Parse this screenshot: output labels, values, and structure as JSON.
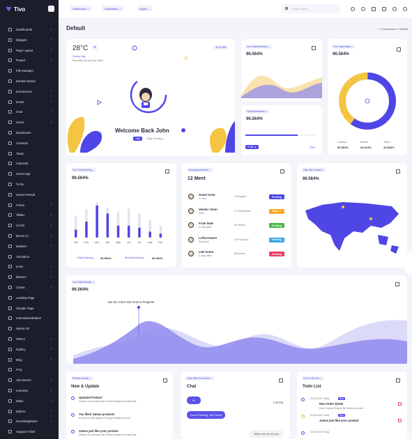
{
  "brand": "Tivo",
  "topbar": {
    "pills": [
      "Dashboard",
      "Application",
      "pages"
    ],
    "search_placeholder": "Search Here ..."
  },
  "sidebar": {
    "items": [
      {
        "label": "Dashboards",
        "chev": true
      },
      {
        "label": "Widgets",
        "chev": true
      },
      {
        "label": "Page Layout",
        "chev": true
      },
      {
        "label": "Project",
        "chev": true
      },
      {
        "label": "File Manager",
        "chev": false
      },
      {
        "label": "Kanban Board",
        "chev": false
      },
      {
        "label": "Ecommerce",
        "chev": true
      },
      {
        "label": "Email",
        "chev": true
      },
      {
        "label": "Chat",
        "chev": true
      },
      {
        "label": "Users",
        "chev": true
      },
      {
        "label": "Bookmarks",
        "chev": false
      },
      {
        "label": "Contacts",
        "chev": false
      },
      {
        "label": "Tasks",
        "chev": false
      },
      {
        "label": "Calendar",
        "chev": false
      },
      {
        "label": "Social App",
        "chev": false
      },
      {
        "label": "To-Do",
        "chev": false
      },
      {
        "label": "Search Result",
        "chev": false
      },
      {
        "label": "Forms",
        "chev": true
      },
      {
        "label": "Tables",
        "chev": true
      },
      {
        "label": "Ui Kits",
        "chev": true
      },
      {
        "label": "Bonus Ui",
        "chev": true
      },
      {
        "label": "Builders",
        "chev": true
      },
      {
        "label": "Animation",
        "chev": true
      },
      {
        "label": "Icons",
        "chev": true
      },
      {
        "label": "Buttons",
        "chev": true
      },
      {
        "label": "Charts",
        "chev": true
      },
      {
        "label": "Landing Page",
        "chev": false
      },
      {
        "label": "Sample Page",
        "chev": false
      },
      {
        "label": "Internationalization",
        "chev": false
      },
      {
        "label": "Starter Kit",
        "chev": false
      },
      {
        "label": "Others",
        "chev": true
      },
      {
        "label": "Gallery",
        "chev": true
      },
      {
        "label": "Blog",
        "chev": true
      },
      {
        "label": "FAQ",
        "chev": false
      },
      {
        "label": "Job Search",
        "chev": true
      },
      {
        "label": "Learning",
        "chev": true
      },
      {
        "label": "Maps",
        "chev": true
      },
      {
        "label": "Editors",
        "chev": true
      },
      {
        "label": "Knowledgebase",
        "chev": true
      },
      {
        "label": "Support Ticket",
        "chev": false
      }
    ]
  },
  "page": {
    "title": "Default",
    "breadcrumb": "⌂  »  Dashboard  »  Default"
  },
  "welcome": {
    "temp": "28°C",
    "day": "Sunny Day",
    "desc": "Beautiful Sunny Day Walk",
    "time": "10:11 AM",
    "title": "Welcome Back John",
    "badge": "Task",
    "pending": "Daily Pending"
  },
  "revenue": {
    "tag": "Our Total Revenue",
    "value": "96.564%"
  },
  "investment": {
    "tag": "Total Investment",
    "value": "96.564%",
    "badge": "3,985 ▲",
    "progress": 75,
    "progress_label": "75%"
  },
  "sales": {
    "tag": "Our Total Sales",
    "value": "96.564%",
    "legend": [
      {
        "label": "Desktop",
        "value": "96.564%"
      },
      {
        "label": "Mobile",
        "value": "92.624%"
      },
      {
        "label": "Tablet",
        "value": "42.564%"
      }
    ]
  },
  "earning": {
    "tag": "Our Total Earning",
    "value": "96.564%",
    "daily_label": "Daily Earning",
    "daily_value": "96.564%",
    "monthly_label": "Monthly Earning",
    "monthly_value": "96.364%"
  },
  "chart_data": [
    {
      "type": "bar",
      "categories": [
        "Jan",
        "Feb",
        "Mar",
        "Apr",
        "May",
        "Jun",
        "Jul",
        "Aug",
        "Sep"
      ],
      "series": [
        {
          "values": [
            20,
            40,
            80,
            60,
            30,
            30,
            25,
            15,
            10
          ]
        },
        {
          "values": [
            55,
            70,
            88,
            75,
            65,
            72,
            60,
            45,
            30
          ]
        }
      ]
    },
    {
      "type": "pie",
      "values": [
        60,
        40
      ],
      "colors": [
        "#4e46e5",
        "#f4c542"
      ]
    }
  ],
  "appointment": {
    "tag": "Total Appointment",
    "title": "12 Meet",
    "rows": [
      {
        "name": "Guest Actor",
        "sub": "1 Hour",
        "date": "15 August",
        "status": "Pending",
        "color": "#4e46e5"
      },
      {
        "name": "Vendor Joran",
        "sub": "Now",
        "date": "21 September",
        "status": "Done ✓",
        "color": "#f7a825"
      },
      {
        "name": "From leale",
        "sub": "2 Day After",
        "date": "06 March",
        "status": "Pending",
        "color": "#48bb48"
      },
      {
        "name": "Lofton Haren",
        "sub": "Day End",
        "date": "15 February",
        "status": "Pending",
        "color": "#3ba7e6"
      },
      {
        "name": "Lele tontor",
        "sub": "2 Day After",
        "date": "08 March",
        "status": "Pending",
        "color": "#ee3a61"
      }
    ]
  },
  "country": {
    "tag": "User By Country",
    "value": "96.564%"
  },
  "growth": {
    "tag": "Our Total Growth",
    "value": "96.564%",
    "annotation": "We are Active Our Goal in Progress"
  },
  "activity": {
    "tag": "Recent Activity",
    "title": "New & Update",
    "items": [
      {
        "title": "Updated Product",
        "sub": "Quisque a consequat ante Sit amet magna at volutapt elite"
      },
      {
        "title": "You liked James products",
        "sub": "Aenean sit amet magna vel magna fringilla fermenta"
      },
      {
        "title": "James just like your product",
        "sub": "Quisque a consequat ante Sit amet magna at volutapt elite"
      }
    ]
  },
  "chat": {
    "tag": "Chat With Our Users",
    "title": "Chat",
    "messages": [
      {
        "text": "Hi",
        "time": "7:28 PM"
      },
      {
        "text": "Good Evening, My Friend"
      },
      {
        "text": "What can do for you"
      }
    ]
  },
  "todo": {
    "tag": "Our To Do List",
    "title": "Todo List",
    "items": [
      {
        "date": "25-04-2022 Today",
        "title": "New Order $2346",
        "new": "New",
        "sub": "Dolor Purpose Product Tab Delivery process"
      },
      {
        "date": "25-06-2022 Today",
        "title": "James just like your product",
        "new": "New",
        "sub": ""
      },
      {
        "date": "25-06-2022 Today",
        "title": "",
        "new": "",
        "sub": ""
      }
    ]
  }
}
